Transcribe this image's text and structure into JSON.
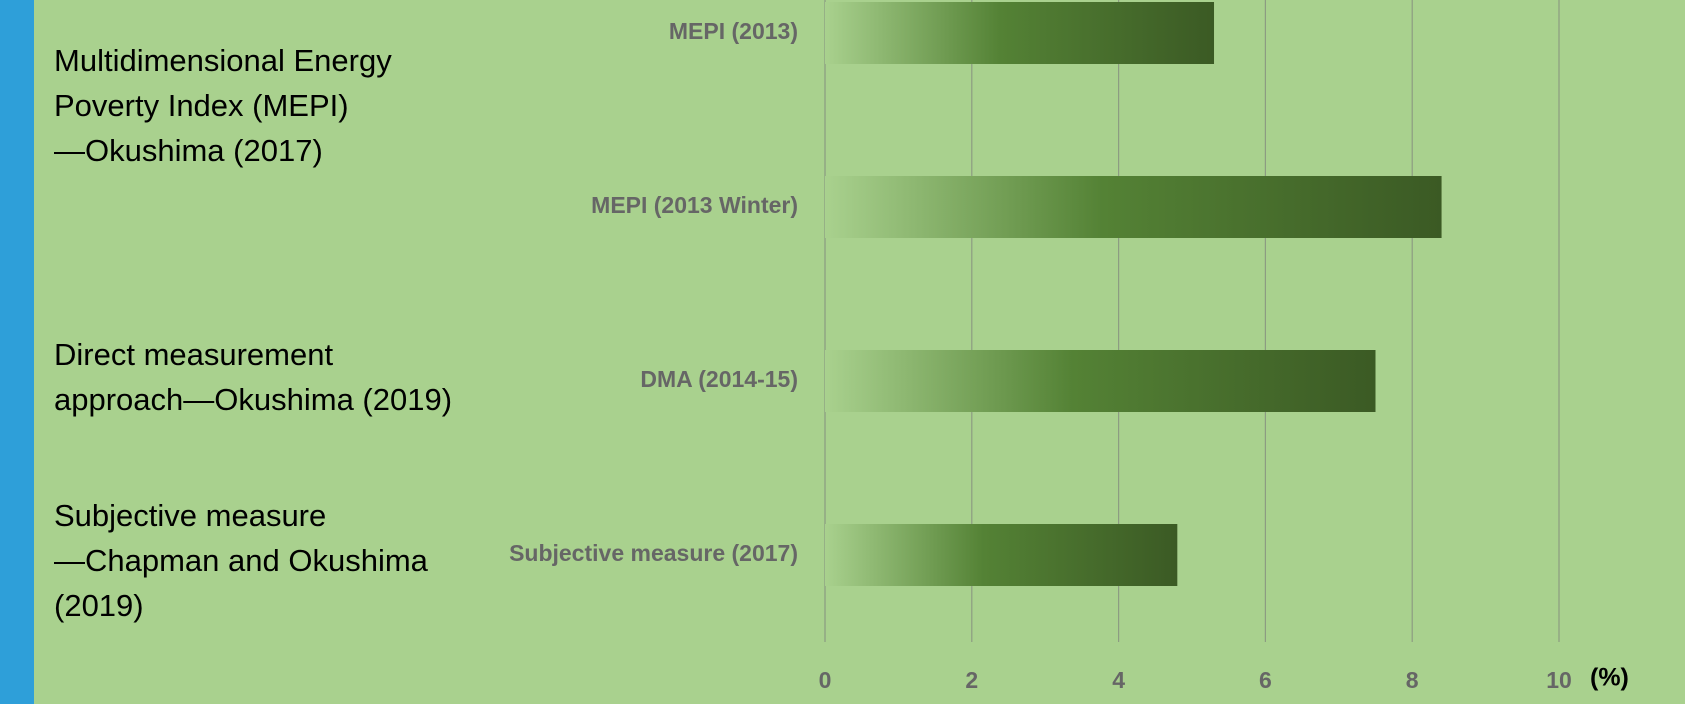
{
  "chart_data": {
    "type": "bar",
    "orientation": "horizontal",
    "categories": [
      "MEPI (2013)",
      "MEPI (2013 Winter)",
      "DMA (2014-15)",
      "Subjective measure (2017)"
    ],
    "values": [
      5.3,
      8.4,
      7.5,
      4.8
    ],
    "color": "#3b5a24",
    "xlim": [
      0,
      10
    ],
    "xticks": [
      0,
      2,
      4,
      6,
      8,
      10
    ],
    "grid": true,
    "x_label": "(%)",
    "annotations": [
      [
        "Multidimensional Energy",
        "Poverty Index (MEPI)",
        "—Okushima (2017)"
      ],
      [
        "Direct measurement",
        "approach—Okushima (2019)"
      ],
      [
        "Subjective measure",
        "—Chapman and Okushima",
        "(2019)"
      ]
    ]
  }
}
